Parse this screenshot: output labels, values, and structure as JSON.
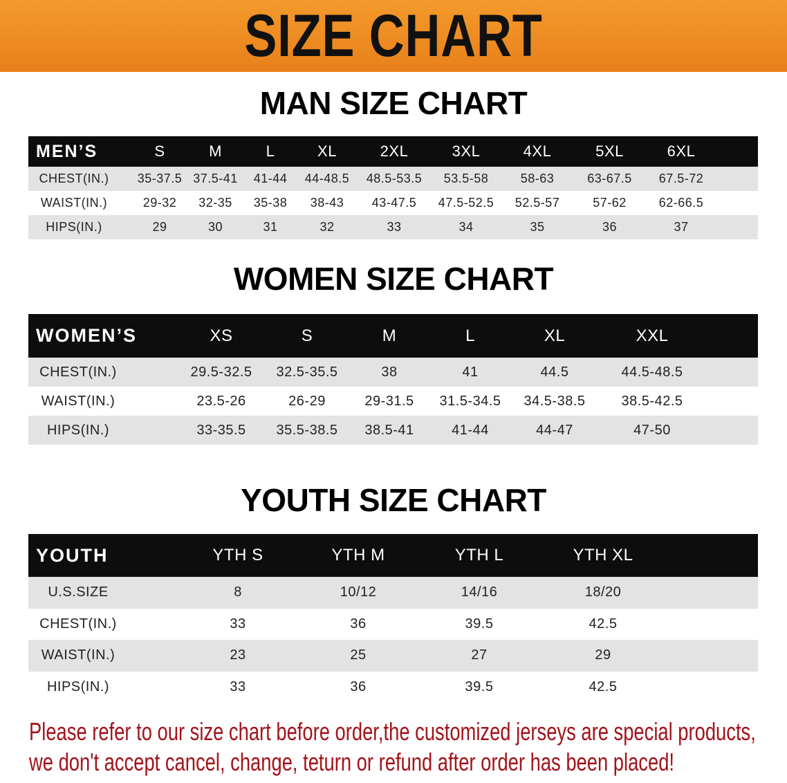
{
  "banner": {
    "title": "SIZE CHART",
    "color": "#ee8a22"
  },
  "men": {
    "title": "MAN SIZE CHART",
    "header": [
      "MEN’S",
      "S",
      "M",
      "L",
      "XL",
      "2XL",
      "3XL",
      "4XL",
      "5XL",
      "6XL"
    ],
    "rows": [
      [
        "CHEST(IN.)",
        "35-37.5",
        "37.5-41",
        "41-44",
        "44-48.5",
        "48.5-53.5",
        "53.5-58",
        "58-63",
        "63-67.5",
        "67.5-72"
      ],
      [
        "WAIST(IN.)",
        "29-32",
        "32-35",
        "35-38",
        "38-43",
        "43-47.5",
        "47.5-52.5",
        "52.5-57",
        "57-62",
        "62-66.5"
      ],
      [
        "HIPS(IN.)",
        "29",
        "30",
        "31",
        "32",
        "33",
        "34",
        "35",
        "36",
        "37"
      ]
    ]
  },
  "women": {
    "title": "WOMEN SIZE CHART",
    "header": [
      "WOMEN’S",
      "XS",
      "S",
      "M",
      "L",
      "XL",
      "XXL"
    ],
    "rows": [
      [
        "CHEST(IN.)",
        "29.5-32.5",
        "32.5-35.5",
        "38",
        "41",
        "44.5",
        "44.5-48.5"
      ],
      [
        "WAIST(IN.)",
        "23.5-26",
        "26-29",
        "29-31.5",
        "31.5-34.5",
        "34.5-38.5",
        "38.5-42.5"
      ],
      [
        "HIPS(IN.)",
        "33-35.5",
        "35.5-38.5",
        "38.5-41",
        "41-44",
        "44-47",
        "47-50"
      ]
    ]
  },
  "youth": {
    "title": "YOUTH SIZE CHART",
    "header": [
      "YOUTH",
      "YTH S",
      "YTH M",
      "YTH L",
      "YTH XL"
    ],
    "rows": [
      [
        "U.S.SIZE",
        "8",
        "10/12",
        "14/16",
        "18/20"
      ],
      [
        "CHEST(IN.)",
        "33",
        "36",
        "39.5",
        "42.5"
      ],
      [
        "WAIST(IN.)",
        "23",
        "25",
        "27",
        "29"
      ],
      [
        "HIPS(IN.)",
        "33",
        "36",
        "39.5",
        "42.5"
      ]
    ]
  },
  "notice": {
    "line1": "Please refer to our size chart before order,the customized jerseys are special products,",
    "line2": "we don't accept cancel, change, teturn or refund after order has been placed!",
    "color": "#a3121a"
  }
}
